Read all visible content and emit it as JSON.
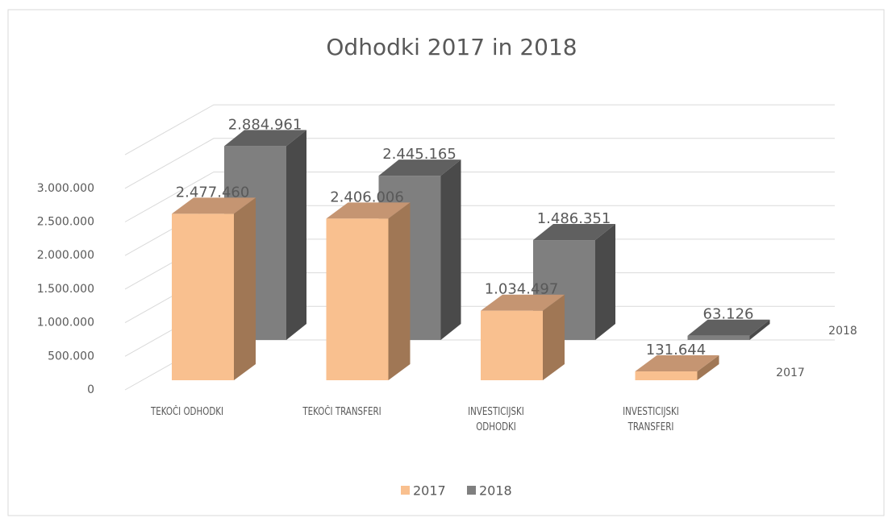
{
  "chart_data": {
    "type": "bar3d",
    "title": "Odhodki   2017 in 2018",
    "categories": [
      "TEKOČI ODHODKI",
      "TEKOČI TRANSFERI",
      "INVESTICIJSKI ODHODKI",
      "INVESTICIJSKI TRANSFERI"
    ],
    "series": [
      {
        "name": "2017",
        "color": "#f9c08f",
        "values": [
          2477460,
          2406006,
          1034497,
          131644
        ],
        "value_labels": [
          "2.477.460",
          "2.406.006",
          "1.034.497",
          "131.644"
        ]
      },
      {
        "name": "2018",
        "color": "#7f7f7f",
        "values": [
          2884961,
          2445165,
          1486351,
          63126
        ],
        "value_labels": [
          "2.884.961",
          "2.445.165",
          "1.486.351",
          "63.126"
        ]
      }
    ],
    "ylim": [
      0,
      3500000
    ],
    "yticks": [
      0,
      {
        "value": 500000,
        "label": "500.000"
      },
      {
        "value": 1000000,
        "label": "1.000.000"
      },
      {
        "value": 1500000,
        "label": "1.500.000"
      },
      {
        "value": 2000000,
        "label": "2.000.000"
      },
      {
        "value": 2500000,
        "label": "2.500.000"
      },
      {
        "value": 3000000,
        "label": "3.000.000"
      }
    ],
    "grid": true,
    "legend": "bottom"
  }
}
